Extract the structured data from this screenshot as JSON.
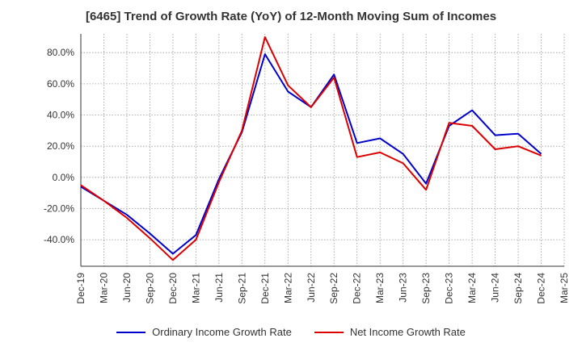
{
  "chart_data": {
    "type": "line",
    "title": "[6465]  Trend of Growth Rate (YoY) of 12-Month Moving Sum of Incomes",
    "xlabel": "",
    "ylabel": "",
    "x": [
      "Dec-19",
      "Mar-20",
      "Jun-20",
      "Sep-20",
      "Dec-20",
      "Mar-21",
      "Jun-21",
      "Sep-21",
      "Dec-21",
      "Mar-22",
      "Jun-22",
      "Sep-22",
      "Dec-22",
      "Mar-23",
      "Jun-23",
      "Sep-23",
      "Dec-23",
      "Mar-24",
      "Jun-24",
      "Sep-24",
      "Dec-24",
      "Mar-25"
    ],
    "ylim": [
      -57,
      92
    ],
    "yticks": [
      -40,
      -20,
      0,
      20,
      40,
      60,
      80
    ],
    "ytick_labels": [
      "-40.0%",
      "-20.0%",
      "0.0%",
      "20.0%",
      "40.0%",
      "60.0%",
      "80.0%"
    ],
    "grid": true,
    "legend_position": "bottom",
    "series": [
      {
        "name": "Ordinary Income Growth Rate",
        "color": "#0000cc",
        "values": [
          -6,
          -15,
          -24,
          -36,
          -49,
          -37,
          -1,
          29,
          79,
          55,
          45,
          66,
          22,
          25,
          15,
          -4,
          33,
          43,
          27,
          28,
          15,
          null
        ]
      },
      {
        "name": "Net Income Growth Rate",
        "color": "#dd0000",
        "values": [
          -5,
          -15,
          -26,
          -39,
          -53,
          -40,
          -3,
          30,
          90,
          59,
          45,
          64,
          13,
          16,
          9,
          -8,
          35,
          33,
          18,
          20,
          14,
          null
        ]
      }
    ]
  }
}
